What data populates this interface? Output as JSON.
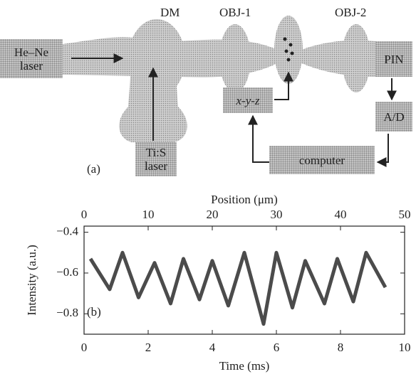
{
  "diagram": {
    "panel_label": "(a)",
    "nodes": [
      {
        "label": "He–Ne laser"
      },
      {
        "label": "DM"
      },
      {
        "label": "OBJ-1"
      },
      {
        "label": "OBJ-2"
      },
      {
        "label": "PIN"
      },
      {
        "label": "A/D"
      },
      {
        "label": "x-y-z"
      },
      {
        "label": "computer"
      },
      {
        "label": "Ti:S laser"
      }
    ]
  },
  "chart_data": {
    "type": "line",
    "x_label": "Time (ms)",
    "x2_label": "Position (μm)",
    "y_label": "Intensity (a.u.)",
    "annotation": "(b)",
    "x": [
      0.2,
      0.8,
      1.2,
      1.7,
      2.2,
      2.7,
      3.1,
      3.6,
      4.0,
      4.5,
      5.0,
      5.6,
      6.0,
      6.5,
      6.9,
      7.5,
      7.9,
      8.4,
      8.8,
      9.4
    ],
    "values": [
      -0.53,
      -0.68,
      -0.5,
      -0.72,
      -0.55,
      -0.75,
      -0.53,
      -0.73,
      -0.54,
      -0.76,
      -0.5,
      -0.85,
      -0.5,
      -0.77,
      -0.54,
      -0.75,
      -0.53,
      -0.74,
      -0.5,
      -0.67
    ],
    "color": "#2b2b2b",
    "xlim": [
      0,
      10
    ],
    "xticks": [
      0,
      2,
      4,
      6,
      8,
      10
    ],
    "x2lim": [
      0,
      50
    ],
    "x2ticks": [
      0,
      10,
      20,
      30,
      40,
      50
    ],
    "ylim": [
      -0.9,
      -0.37
    ],
    "yticks": [
      {
        "value": -0.4,
        "label": "−0.4"
      },
      {
        "value": -0.6,
        "label": "−0.6"
      },
      {
        "value": -0.8,
        "label": "−0.8"
      }
    ]
  }
}
